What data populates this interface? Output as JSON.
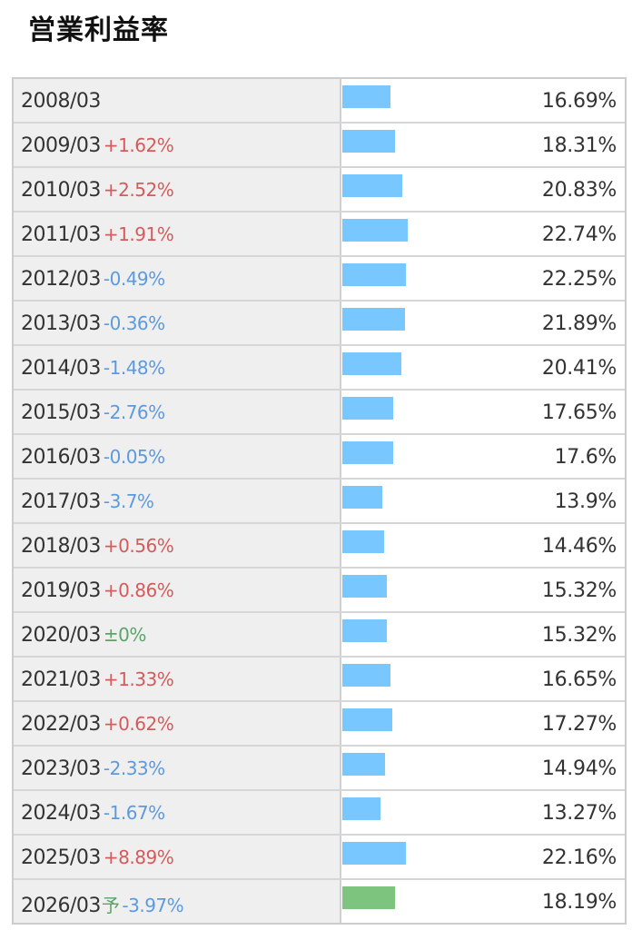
{
  "title": "営業利益率",
  "chart_data": {
    "type": "bar",
    "orientation": "horizontal",
    "title": "営業利益率",
    "unit": "%",
    "forecast_color": "#7dc47f",
    "bar_color": "#78c8ff",
    "up_color": "#d35b5b",
    "down_color": "#5c9ae0",
    "flat_color": "#5aa36a",
    "rows": [
      {
        "period": "2008/03",
        "change": "",
        "dir": "",
        "value": 16.69,
        "label": "16.69%",
        "forecast": false
      },
      {
        "period": "2009/03",
        "change": "+1.62%",
        "dir": "up",
        "value": 18.31,
        "label": "18.31%",
        "forecast": false
      },
      {
        "period": "2010/03",
        "change": "+2.52%",
        "dir": "up",
        "value": 20.83,
        "label": "20.83%",
        "forecast": false
      },
      {
        "period": "2011/03",
        "change": "+1.91%",
        "dir": "up",
        "value": 22.74,
        "label": "22.74%",
        "forecast": false
      },
      {
        "period": "2012/03",
        "change": "-0.49%",
        "dir": "down",
        "value": 22.25,
        "label": "22.25%",
        "forecast": false
      },
      {
        "period": "2013/03",
        "change": "-0.36%",
        "dir": "down",
        "value": 21.89,
        "label": "21.89%",
        "forecast": false
      },
      {
        "period": "2014/03",
        "change": "-1.48%",
        "dir": "down",
        "value": 20.41,
        "label": "20.41%",
        "forecast": false
      },
      {
        "period": "2015/03",
        "change": "-2.76%",
        "dir": "down",
        "value": 17.65,
        "label": "17.65%",
        "forecast": false
      },
      {
        "period": "2016/03",
        "change": "-0.05%",
        "dir": "down",
        "value": 17.6,
        "label": "17.6%",
        "forecast": false
      },
      {
        "period": "2017/03",
        "change": "-3.7%",
        "dir": "down",
        "value": 13.9,
        "label": "13.9%",
        "forecast": false
      },
      {
        "period": "2018/03",
        "change": "+0.56%",
        "dir": "up",
        "value": 14.46,
        "label": "14.46%",
        "forecast": false
      },
      {
        "period": "2019/03",
        "change": "+0.86%",
        "dir": "up",
        "value": 15.32,
        "label": "15.32%",
        "forecast": false
      },
      {
        "period": "2020/03",
        "change": "±0%",
        "dir": "flat",
        "value": 15.32,
        "label": "15.32%",
        "forecast": false
      },
      {
        "period": "2021/03",
        "change": "+1.33%",
        "dir": "up",
        "value": 16.65,
        "label": "16.65%",
        "forecast": false
      },
      {
        "period": "2022/03",
        "change": "+0.62%",
        "dir": "up",
        "value": 17.27,
        "label": "17.27%",
        "forecast": false
      },
      {
        "period": "2023/03",
        "change": "-2.33%",
        "dir": "down",
        "value": 14.94,
        "label": "14.94%",
        "forecast": false
      },
      {
        "period": "2024/03",
        "change": "-1.67%",
        "dir": "down",
        "value": 13.27,
        "label": "13.27%",
        "forecast": false
      },
      {
        "period": "2025/03",
        "change": "+8.89%",
        "dir": "up",
        "value": 22.16,
        "label": "22.16%",
        "forecast": false
      },
      {
        "period": "2026/03",
        "forecast_mark": "予",
        "change": "-3.97%",
        "dir": "down",
        "value": 18.19,
        "label": "18.19%",
        "forecast": true
      }
    ]
  }
}
